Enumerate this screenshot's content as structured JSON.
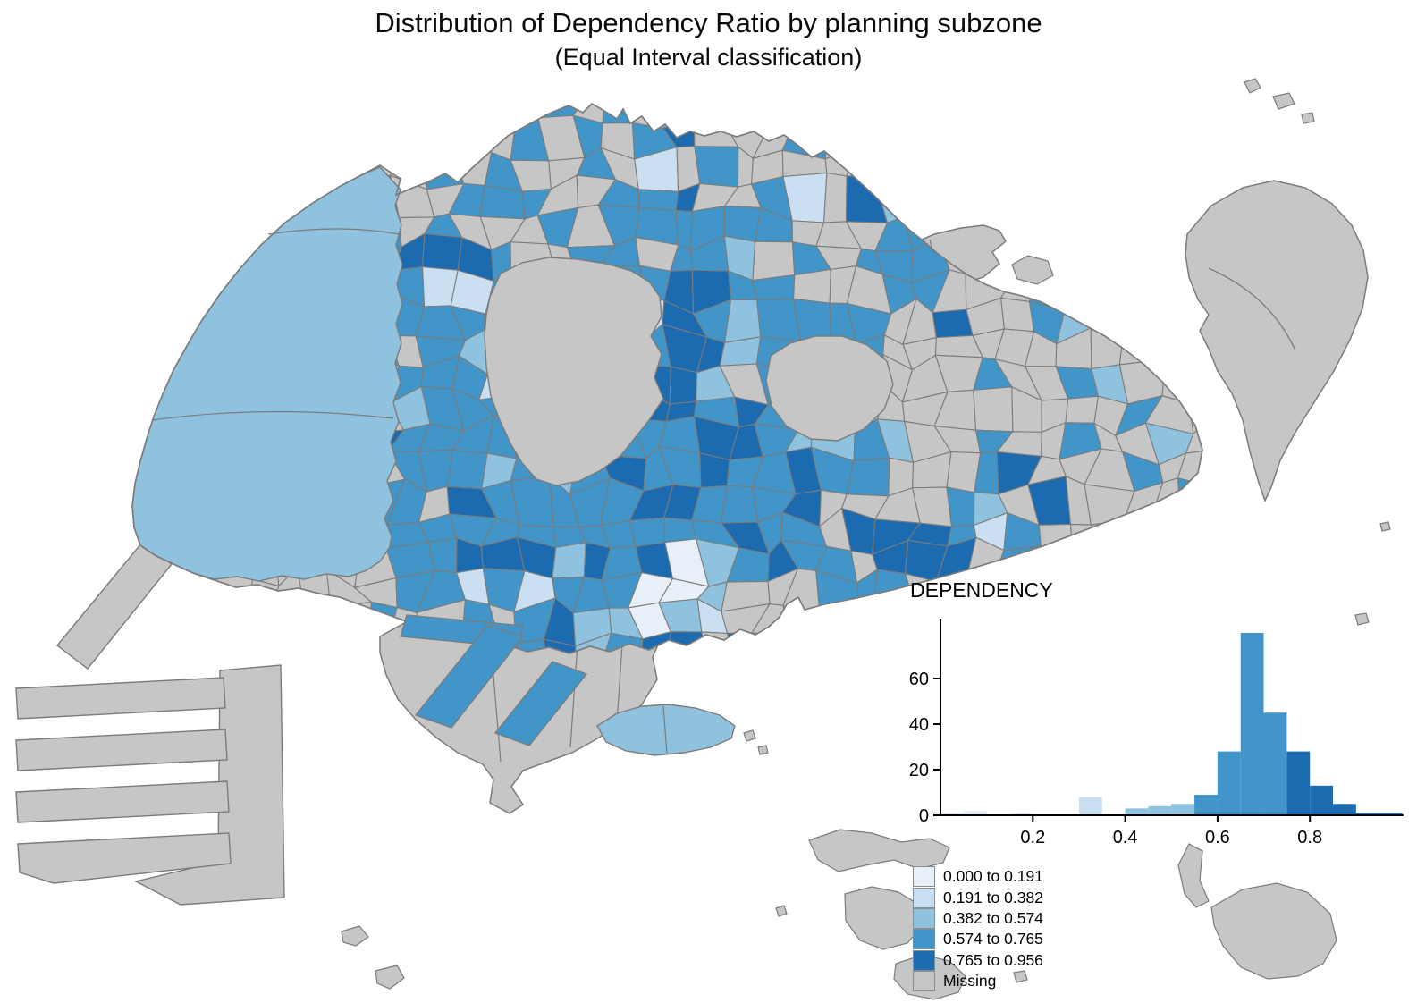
{
  "title": {
    "line1": "Distribution of Dependency Ratio by planning subzone",
    "line2": "(Equal Interval classification)"
  },
  "chart_data": {
    "type": "bar",
    "title": "DEPENDENCY",
    "bin_width": 0.05,
    "bin_starts": [
      0.0,
      0.05,
      0.1,
      0.15,
      0.2,
      0.25,
      0.3,
      0.35,
      0.4,
      0.45,
      0.5,
      0.55,
      0.6,
      0.65,
      0.7,
      0.75,
      0.8,
      0.85,
      0.9,
      0.95
    ],
    "values": [
      1,
      2,
      0,
      1,
      0,
      0,
      8,
      0,
      3,
      4,
      5,
      9,
      28,
      80,
      45,
      28,
      13,
      5,
      1,
      1
    ],
    "xticks": [
      0.2,
      0.4,
      0.6,
      0.8
    ],
    "yticks": [
      0,
      20,
      40,
      60
    ],
    "xlim": [
      0,
      1.0
    ],
    "ylim": [
      0,
      85
    ],
    "grid": false,
    "legend_position": "bottom-right",
    "class_breaks": [
      0.0,
      0.191,
      0.382,
      0.574,
      0.765,
      0.956
    ]
  },
  "legend": {
    "entries": [
      {
        "label": "0.000 to 0.191",
        "color": "#e7f0f9"
      },
      {
        "label": "0.191 to 0.382",
        "color": "#cbdff2"
      },
      {
        "label": "0.382 to 0.574",
        "color": "#8fc2de"
      },
      {
        "label": "0.574 to 0.765",
        "color": "#4295c8"
      },
      {
        "label": "0.765 to 0.956",
        "color": "#1c6bb0"
      },
      {
        "label": "Missing",
        "color": "#c6c6c6"
      }
    ]
  },
  "palette": {
    "c1": "#e7f0f9",
    "c2": "#cbdff2",
    "c3": "#8fc2de",
    "c4": "#4295c8",
    "c5": "#1c6bb0",
    "missing": "#c6c6c6",
    "border": "#7b7b7b",
    "axis": "#000000",
    "text": "#000000"
  }
}
